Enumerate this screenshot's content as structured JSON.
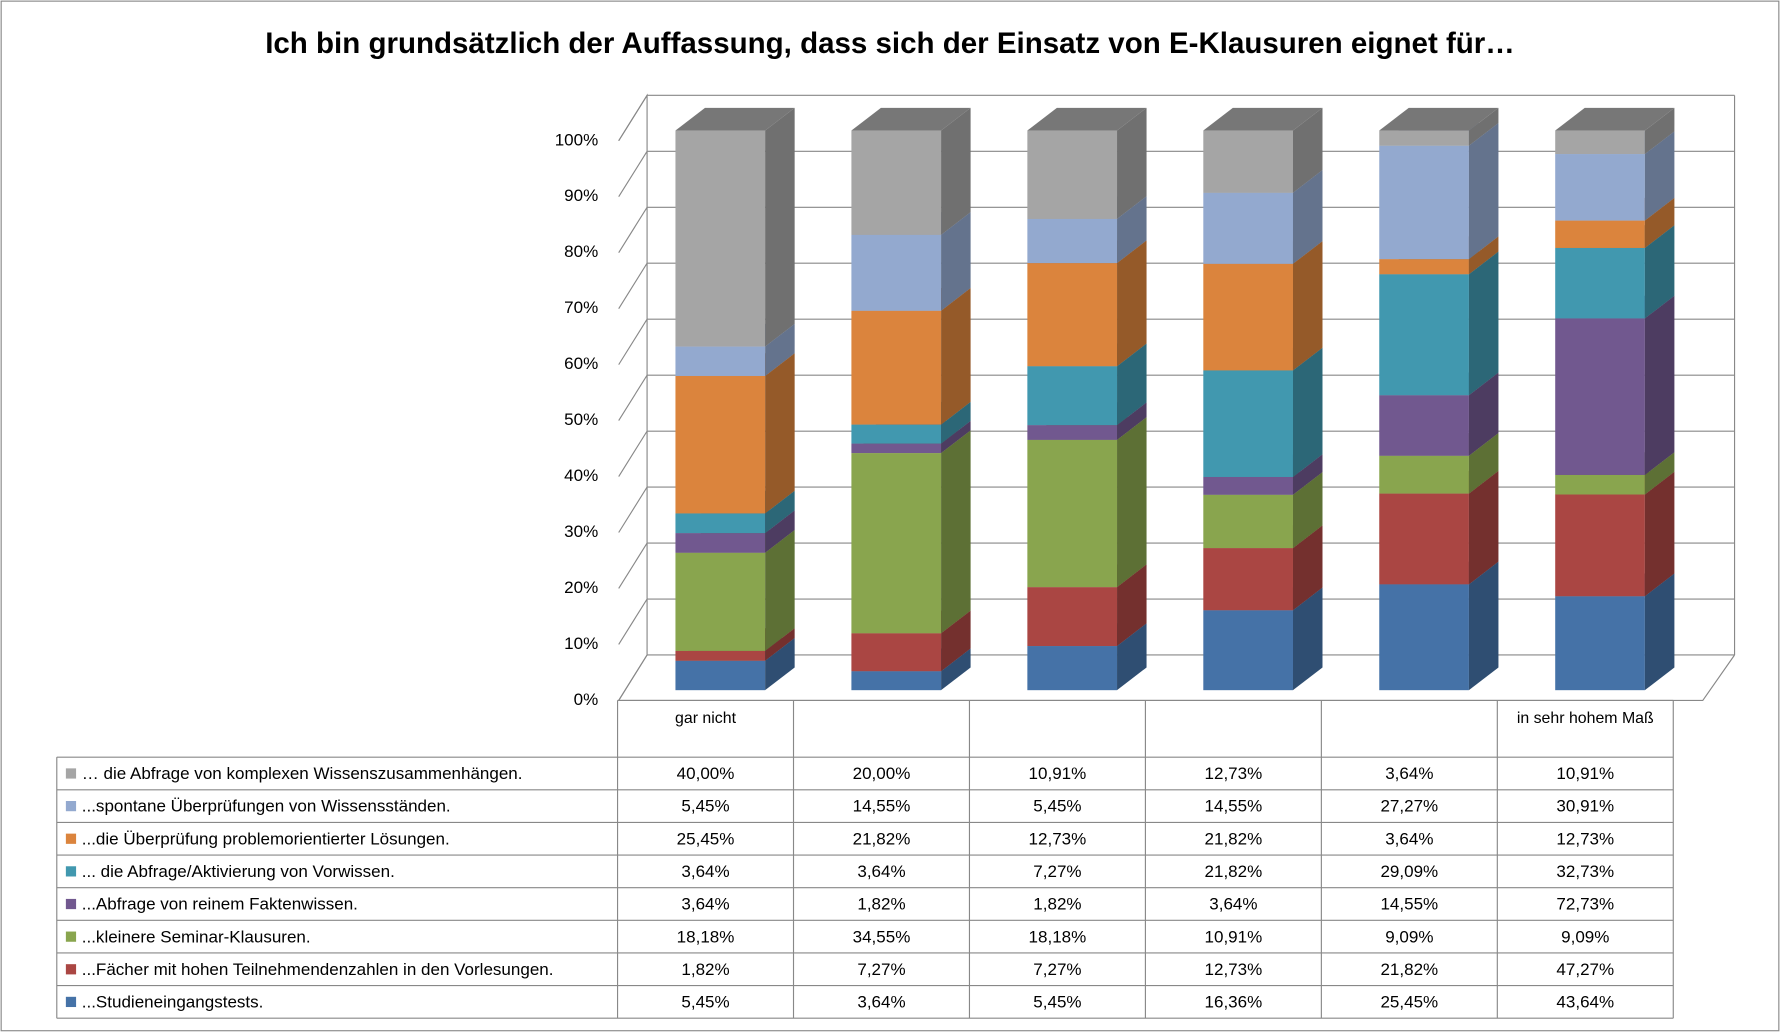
{
  "chart_data": {
    "type": "stacked_percent_bar_3d",
    "title": "Ich bin grundsätzlich der Auffassung, dass sich der Einsatz von E-Klausuren eignet für…",
    "categories": [
      "gar nicht",
      null,
      null,
      null,
      null,
      "in sehr hohem Maß"
    ],
    "ylim": [
      0,
      100
    ],
    "yticks": [
      {
        "value": 0,
        "label": "0%"
      },
      {
        "value": 10,
        "label": "10%"
      },
      {
        "value": 20,
        "label": "20%"
      },
      {
        "value": 30,
        "label": "30%"
      },
      {
        "value": 40,
        "label": "40%"
      },
      {
        "value": 50,
        "label": "50%"
      },
      {
        "value": 60,
        "label": "60%"
      },
      {
        "value": 70,
        "label": "70%"
      },
      {
        "value": 80,
        "label": "80%"
      },
      {
        "value": 90,
        "label": "90%"
      },
      {
        "value": 100,
        "label": "100%"
      }
    ],
    "grid": true,
    "series": [
      {
        "name": "… die Abfrage von komplexen Wissenszusammenhängen.",
        "color": "#a5a5a5",
        "values": [
          40.0,
          20.0,
          10.91,
          12.73,
          3.64,
          10.91
        ],
        "value_labels": [
          "40,00%",
          "20,00%",
          "10,91%",
          "12,73%",
          "3,64%",
          "10,91%"
        ]
      },
      {
        "name": "...spontane Überprüfungen von Wissensständen.",
        "color": "#93a9cf",
        "values": [
          5.45,
          14.55,
          5.45,
          14.55,
          27.27,
          30.91
        ],
        "value_labels": [
          "5,45%",
          "14,55%",
          "5,45%",
          "14,55%",
          "27,27%",
          "30,91%"
        ]
      },
      {
        "name": "...die Überprüfung problemorientierter Lösungen.",
        "color": "#db843d",
        "values": [
          25.45,
          21.82,
          12.73,
          21.82,
          3.64,
          12.73
        ],
        "value_labels": [
          "25,45%",
          "21,82%",
          "12,73%",
          "21,82%",
          "3,64%",
          "12,73%"
        ]
      },
      {
        "name": "... die Abfrage/Aktivierung von Vorwissen.",
        "color": "#4198af",
        "values": [
          3.64,
          3.64,
          7.27,
          21.82,
          29.09,
          32.73
        ],
        "value_labels": [
          "3,64%",
          "3,64%",
          "7,27%",
          "21,82%",
          "29,09%",
          "32,73%"
        ]
      },
      {
        "name": "...Abfrage von reinem Faktenwissen.",
        "color": "#71588f",
        "values": [
          3.64,
          1.82,
          1.82,
          3.64,
          14.55,
          72.73
        ],
        "value_labels": [
          "3,64%",
          "1,82%",
          "1,82%",
          "3,64%",
          "14,55%",
          "72,73%"
        ]
      },
      {
        "name": "...kleinere Seminar-Klausuren.",
        "color": "#89a54e",
        "values": [
          18.18,
          34.55,
          18.18,
          10.91,
          9.09,
          9.09
        ],
        "value_labels": [
          "18,18%",
          "34,55%",
          "18,18%",
          "10,91%",
          "9,09%",
          "9,09%"
        ]
      },
      {
        "name": "...Fächer mit hohen Teilnehmendenzahlen in den Vorlesungen.",
        "color": "#aa4643",
        "values": [
          1.82,
          7.27,
          7.27,
          12.73,
          21.82,
          47.27
        ],
        "value_labels": [
          "1,82%",
          "7,27%",
          "7,27%",
          "12,73%",
          "21,82%",
          "47,27%"
        ]
      },
      {
        "name": "...Studieneingangstests.",
        "color": "#4572a7",
        "values": [
          5.45,
          3.64,
          5.45,
          16.36,
          25.45,
          43.64
        ],
        "value_labels": [
          "5,45%",
          "3,64%",
          "5,45%",
          "16,36%",
          "25,45%",
          "43,64%"
        ]
      }
    ]
  }
}
